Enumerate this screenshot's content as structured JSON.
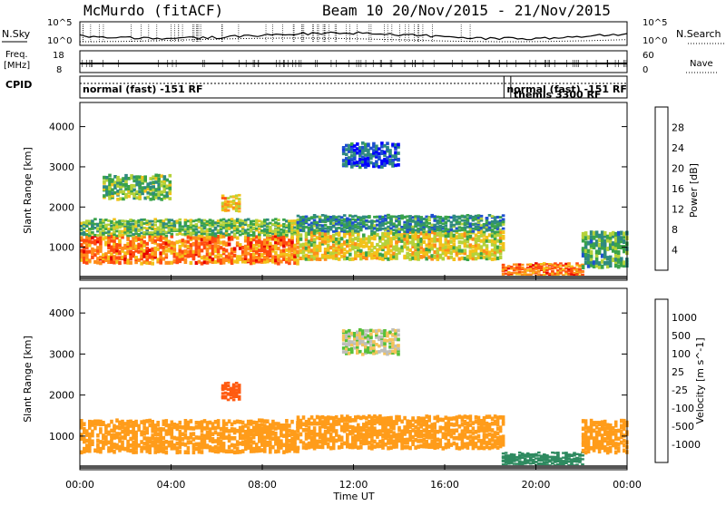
{
  "header": {
    "station": "McMurdo (fitACF)",
    "beam_info": "Beam 10  20/Nov/2015 - 21/Nov/2015"
  },
  "top_panels": {
    "nsky_label": "N.Sky",
    "nsearch_label": "N.Search",
    "nave_label": "Nave",
    "freq_label_1": "Freq.",
    "freq_label_2": "[MHz]",
    "cpid_label": "CPID",
    "nsky_ticks": [
      "10^5",
      "10^0"
    ],
    "nsearch_ticks": [
      "10^5",
      "10^0"
    ],
    "freq_ticks": [
      "18",
      "8"
    ],
    "nave_ticks": [
      "60",
      "0"
    ],
    "cpid_segments": [
      {
        "label": "normal (fast) -151 RF",
        "start_hour": 0
      },
      {
        "label": "normal (fast) -151 RF",
        "start_hour": 18.6
      },
      {
        "label": "themis 3300 RF",
        "start_hour": 18.9
      }
    ]
  },
  "chart_data": [
    {
      "type": "heatmap",
      "name": "power",
      "xlabel": "Time UT",
      "ylabel": "Slant Range [km]",
      "x_ticks": [
        "00:00",
        "04:00",
        "08:00",
        "12:00",
        "16:00",
        "20:00",
        "00:00"
      ],
      "x_tick_hours": [
        0,
        4,
        8,
        12,
        16,
        20,
        24
      ],
      "xlim_hours": [
        0,
        24
      ],
      "y_ticks": [
        1000,
        2000,
        3000,
        4000
      ],
      "ylim": [
        180,
        4600
      ],
      "colorbar": {
        "label": "Power [dB]",
        "ticks": [
          "4",
          "8",
          "12",
          "16",
          "20",
          "24",
          "28"
        ],
        "colors": [
          "#0000ff",
          "#1e4fd0",
          "#2f8a80",
          "#3aa34a",
          "#b5d23a",
          "#f2c21a",
          "#ff8c1a",
          "#ff4a10",
          "#e60000"
        ]
      },
      "regions": [
        {
          "t0": 0,
          "t1": 9.5,
          "r0": 600,
          "r1": 1300,
          "level": 24
        },
        {
          "t0": 0,
          "t1": 9.5,
          "r0": 1300,
          "r1": 1700,
          "level": 14
        },
        {
          "t0": 9.5,
          "t1": 18.5,
          "r0": 700,
          "r1": 1400,
          "level": 18
        },
        {
          "t0": 9.5,
          "t1": 18.5,
          "r0": 1400,
          "r1": 1800,
          "level": 10
        },
        {
          "t0": 1,
          "t1": 4,
          "r0": 2200,
          "r1": 2800,
          "level": 14
        },
        {
          "t0": 6.2,
          "t1": 7,
          "r0": 1900,
          "r1": 2300,
          "level": 20
        },
        {
          "t0": 11.5,
          "t1": 14,
          "r0": 3000,
          "r1": 3600,
          "level": 6
        },
        {
          "t0": 18.5,
          "t1": 22,
          "r0": 280,
          "r1": 600,
          "level": 24
        },
        {
          "t0": 22,
          "t1": 24,
          "r0": 500,
          "r1": 1400,
          "level": 12
        }
      ]
    },
    {
      "type": "heatmap",
      "name": "velocity",
      "xlabel": "Time UT",
      "ylabel": "Slant Range [km]",
      "x_ticks": [
        "00:00",
        "04:00",
        "08:00",
        "12:00",
        "16:00",
        "20:00",
        "00:00"
      ],
      "x_tick_hours": [
        0,
        4,
        8,
        12,
        16,
        20,
        24
      ],
      "xlim_hours": [
        0,
        24
      ],
      "y_ticks": [
        1000,
        2000,
        3000,
        4000
      ],
      "ylim": [
        180,
        4600
      ],
      "colorbar": {
        "label": "Velocity [m s^-1]",
        "ticks": [
          "1000",
          "500",
          "100",
          "25",
          "-25",
          "-100",
          "-500",
          "-1000"
        ],
        "colors": [
          "#1a2fd6",
          "#2b5bc0",
          "#2f8a60",
          "#56c03a",
          "#bebeba",
          "#f5c35a",
          "#ff9c1a",
          "#ff5a10",
          "#e60000"
        ]
      },
      "regions": [
        {
          "t0": 0,
          "t1": 9.5,
          "r0": 600,
          "r1": 1400,
          "level": -200
        },
        {
          "t0": 9.5,
          "t1": 18.5,
          "r0": 700,
          "r1": 1500,
          "level": -300
        },
        {
          "t0": 6.2,
          "t1": 7,
          "r0": 1900,
          "r1": 2300,
          "level": -800
        },
        {
          "t0": 11.5,
          "t1": 14,
          "r0": 3000,
          "r1": 3600,
          "level": 0
        },
        {
          "t0": 18.5,
          "t1": 22,
          "r0": 280,
          "r1": 600,
          "level": 200
        },
        {
          "t0": 22,
          "t1": 24,
          "r0": 600,
          "r1": 1400,
          "level": -200
        }
      ]
    }
  ]
}
